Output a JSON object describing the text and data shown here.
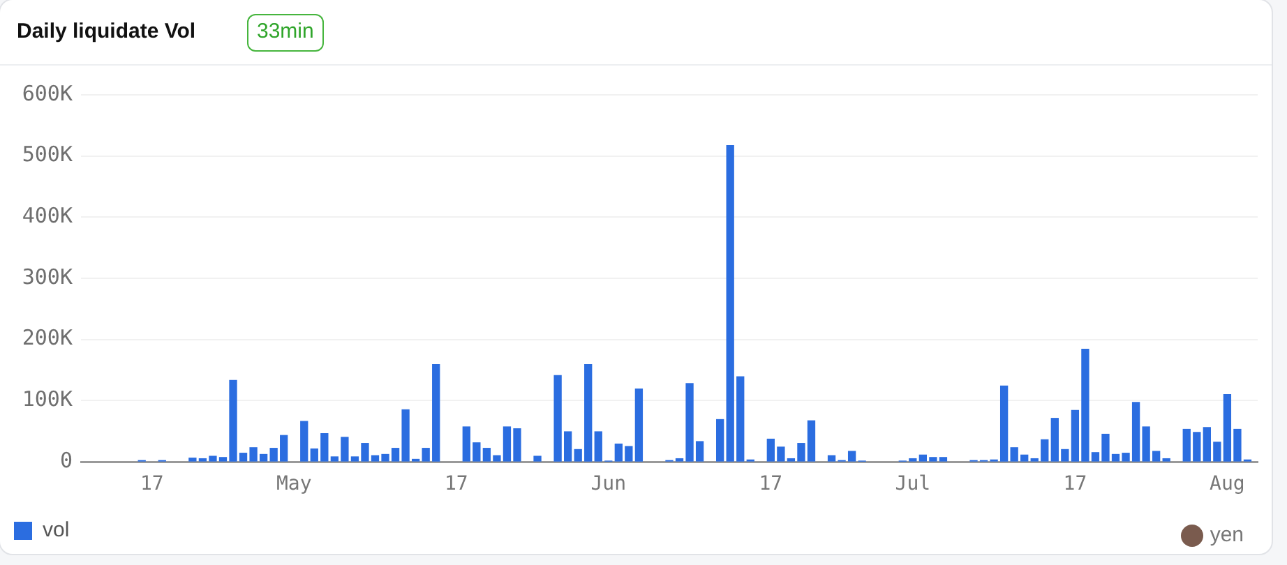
{
  "chart_data": {
    "type": "bar",
    "title": "Daily liquidate Vol",
    "subtitle": "33min",
    "annotations": [
      "yen"
    ],
    "x": [
      "--04-16",
      "--04-18",
      "--04-21",
      "--04-22",
      "--04-23",
      "--04-24",
      "--04-25",
      "--04-26",
      "--04-27",
      "--04-28",
      "--04-29",
      "--04-30",
      "--05-02",
      "--05-03",
      "--05-04",
      "--05-05",
      "--05-06",
      "--05-07",
      "--05-08",
      "--05-09",
      "--05-10",
      "--05-11",
      "--05-12",
      "--05-13",
      "--05-14",
      "--05-15",
      "--05-18",
      "--05-19",
      "--05-20",
      "--05-21",
      "--05-22",
      "--05-23",
      "--05-25",
      "--05-27",
      "--05-28",
      "--05-29",
      "--05-30",
      "--05-31",
      "--06-01",
      "--06-02",
      "--06-03",
      "--06-04",
      "--06-07",
      "--06-08",
      "--06-09",
      "--06-10",
      "--06-12",
      "--06-13",
      "--06-14",
      "--06-15",
      "--06-17",
      "--06-18",
      "--06-19",
      "--06-20",
      "--06-21",
      "--06-23",
      "--06-24",
      "--06-25",
      "--06-26",
      "--06-30",
      "--07-01",
      "--07-02",
      "--07-03",
      "--07-04",
      "--07-07",
      "--07-08",
      "--07-09",
      "--07-10",
      "--07-11",
      "--07-12",
      "--07-13",
      "--07-14",
      "--07-15",
      "--07-16",
      "--07-17",
      "--07-18",
      "--07-19",
      "--07-20",
      "--07-21",
      "--07-22",
      "--07-23",
      "--07-24",
      "--07-25",
      "--07-26",
      "--07-28",
      "--07-29",
      "--07-30",
      "--07-31",
      "--08-01",
      "--08-02",
      "--08-03"
    ],
    "series": [
      {
        "name": "vol",
        "color": "#2b6de0",
        "values": [
          2000,
          2000,
          6000,
          5000,
          9000,
          7000,
          133000,
          14000,
          23000,
          12000,
          22000,
          43000,
          66000,
          21000,
          46000,
          8000,
          40000,
          8000,
          30000,
          10000,
          12000,
          22000,
          85000,
          4000,
          22000,
          159000,
          57000,
          31000,
          22000,
          10000,
          57000,
          54000,
          9000,
          141000,
          49000,
          20000,
          159000,
          49000,
          1000,
          29000,
          25000,
          119000,
          2000,
          5000,
          128000,
          33000,
          69000,
          517000,
          139000,
          3000,
          37000,
          24000,
          5000,
          30000,
          67000,
          10000,
          2000,
          17000,
          1000,
          1000,
          5000,
          11000,
          7000,
          7000,
          2000,
          2000,
          3000,
          124000,
          23000,
          11000,
          5000,
          36000,
          71000,
          20000,
          84000,
          184000,
          15000,
          45000,
          12000,
          14000,
          97000,
          57000,
          17000,
          5000,
          53000,
          48000,
          56000,
          32000,
          110000,
          53000,
          3000
        ]
      }
    ],
    "xlim": [
      "--04-10",
      "--08-04"
    ],
    "xticks": [
      {
        "value": "--04-17",
        "label": "17"
      },
      {
        "value": "--05-01",
        "label": "May"
      },
      {
        "value": "--05-17",
        "label": "17"
      },
      {
        "value": "--06-01",
        "label": "Jun"
      },
      {
        "value": "--06-17",
        "label": "17"
      },
      {
        "value": "--07-01",
        "label": "Jul"
      },
      {
        "value": "--07-17",
        "label": "17"
      },
      {
        "value": "--08-01",
        "label": "Aug"
      }
    ],
    "ylim": [
      0,
      600000
    ],
    "yticks": [
      0,
      {
        "value": 100000,
        "label": "100K"
      },
      {
        "value": 200000,
        "label": "200K"
      },
      {
        "value": 300000,
        "label": "300K"
      },
      {
        "value": 400000,
        "label": "400K"
      },
      {
        "value": 500000,
        "label": "500K"
      },
      {
        "value": 600000,
        "label": "600K"
      }
    ],
    "grid": "y",
    "legend": "bottom left"
  }
}
